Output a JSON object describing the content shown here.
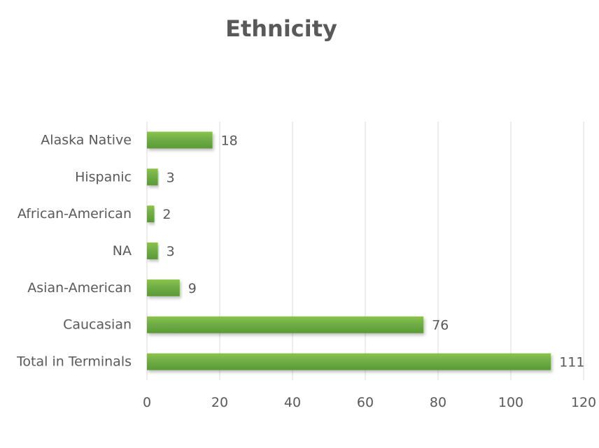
{
  "chart_data": {
    "type": "bar",
    "orientation": "horizontal",
    "title": "Ethnicity",
    "xlabel": "",
    "ylabel": "",
    "categories": [
      "Alaska Native",
      "Hispanic",
      "African-American",
      "NA",
      "Asian-American",
      "Caucasian",
      "Total in Terminals"
    ],
    "values": [
      18,
      3,
      2,
      3,
      9,
      76,
      111
    ],
    "xlim": [
      0,
      120
    ],
    "xticks": [
      "0",
      "20",
      "40",
      "60",
      "80",
      "100",
      "120"
    ],
    "grid": "vertical gridlines",
    "legend": "none",
    "bar_color": "#70ad47",
    "bar_color_dark": "#5a9a36",
    "data_labels": true
  }
}
